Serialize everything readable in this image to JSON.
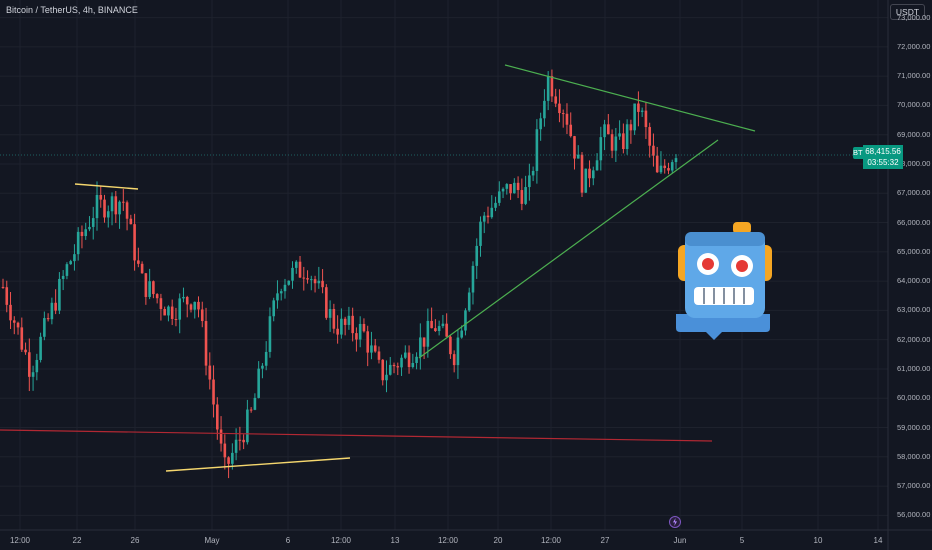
{
  "header": {
    "title": "Bitcoin / TetherUS, 4h, BINANCE",
    "currency": "USDT"
  },
  "price": {
    "symbol": "BTCUSDT",
    "last": "68,415.56",
    "countdown": "03:55:32"
  },
  "colors": {
    "background": "#131722",
    "up": "#26a69a",
    "down": "#ef5350",
    "trendline_green": "#4caf50",
    "trendline_yellow": "#f5d76e",
    "support_red": "#b22833"
  },
  "icons": [
    "robot-icon",
    "lightning-icon"
  ],
  "chart_data": {
    "type": "candlestick",
    "y_axis": {
      "labels": [
        "73,000.00",
        "72,000.00",
        "71,000.00",
        "70,000.00",
        "69,000.00",
        "68,000.00",
        "67,000.00",
        "66,000.00",
        "65,000.00",
        "64,000.00",
        "63,000.00",
        "62,000.00",
        "61,000.00",
        "60,000.00",
        "59,000.00",
        "58,000.00",
        "57,000.00",
        "56,000.00"
      ],
      "ylim": [
        55500,
        73600
      ]
    },
    "x_axis": {
      "labels": [
        "12:00",
        "22",
        "26",
        "May",
        "6",
        "12:00",
        "13",
        "12:00",
        "20",
        "12:00",
        "27",
        "Jun",
        "5",
        "10",
        "14"
      ]
    },
    "trend_segments": [
      {
        "approx": "price path",
        "points": [
          [
            0,
            63800
          ],
          [
            0.03,
            61000
          ],
          [
            0.07,
            64500
          ],
          [
            0.1,
            66500
          ],
          [
            0.13,
            66800
          ],
          [
            0.15,
            64000
          ],
          [
            0.18,
            63000
          ],
          [
            0.21,
            63500
          ],
          [
            0.24,
            57500
          ],
          [
            0.27,
            59500
          ],
          [
            0.3,
            64000
          ],
          [
            0.33,
            64500
          ],
          [
            0.36,
            62500
          ],
          [
            0.39,
            62300
          ],
          [
            0.41,
            60800
          ],
          [
            0.44,
            61500
          ],
          [
            0.47,
            62500
          ],
          [
            0.49,
            61500
          ],
          [
            0.52,
            66200
          ],
          [
            0.55,
            67200
          ],
          [
            0.57,
            67000
          ],
          [
            0.59,
            71000
          ],
          [
            0.61,
            69800
          ],
          [
            0.63,
            67200
          ],
          [
            0.65,
            69000
          ],
          [
            0.67,
            68600
          ],
          [
            0.69,
            70000
          ],
          [
            0.71,
            67500
          ],
          [
            0.73,
            68500
          ]
        ]
      }
    ],
    "annotations": [
      {
        "type": "trendline",
        "color": "green",
        "from": [
          71600,
          "May 20"
        ],
        "to": [
          69200,
          "Jun 5"
        ]
      },
      {
        "type": "trendline",
        "color": "green",
        "from": [
          61100,
          "May 15"
        ],
        "to": [
          68800,
          "Jun 3"
        ]
      },
      {
        "type": "trendline",
        "color": "yellow",
        "from": [
          67400,
          "Apr 22"
        ],
        "to": [
          67200,
          "Apr 26"
        ]
      },
      {
        "type": "trendline",
        "color": "yellow",
        "from": [
          57200,
          "Apr 30"
        ],
        "to": [
          57600,
          "May 10"
        ]
      },
      {
        "type": "hline",
        "color": "red",
        "value": 58300
      }
    ]
  }
}
